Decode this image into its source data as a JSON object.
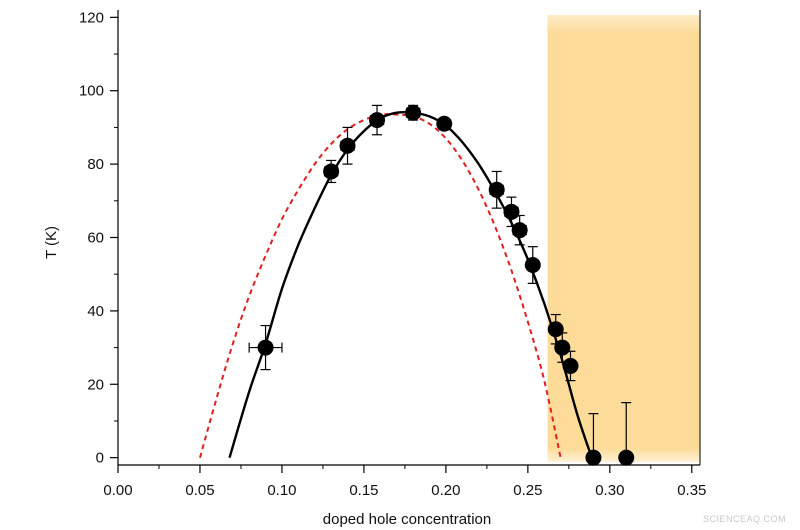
{
  "chart_data": {
    "type": "scatter",
    "title": "",
    "xlabel": "doped hole concentration",
    "ylabel": "T (K)",
    "xlim": [
      0.0,
      0.355
    ],
    "ylim": [
      -2,
      122
    ],
    "x_ticks": [
      "0.00",
      "0.05",
      "0.10",
      "0.15",
      "0.20",
      "0.25",
      "0.30",
      "0.35"
    ],
    "x_tick_values": [
      0.0,
      0.05,
      0.1,
      0.15,
      0.2,
      0.25,
      0.3,
      0.35
    ],
    "y_ticks": [
      "0",
      "20",
      "40",
      "60",
      "80",
      "100",
      "120"
    ],
    "y_tick_values": [
      0,
      20,
      40,
      60,
      80,
      100,
      120
    ],
    "grid": false,
    "shaded_region": {
      "x": [
        0.262,
        0.355
      ],
      "color": "#fddc9a"
    },
    "points": [
      {
        "x": 0.09,
        "y": 30,
        "xerr": 0.01,
        "yerr": 6
      },
      {
        "x": 0.13,
        "y": 78,
        "xerr": 0.004,
        "yerr": 3
      },
      {
        "x": 0.14,
        "y": 85,
        "xerr": 0.004,
        "yerr": 5
      },
      {
        "x": 0.158,
        "y": 92,
        "xerr": 0.004,
        "yerr": 4
      },
      {
        "x": 0.18,
        "y": 94,
        "xerr": 0.004,
        "yerr": 2
      },
      {
        "x": 0.199,
        "y": 91,
        "xerr": 0.0,
        "yerr": 0
      },
      {
        "x": 0.231,
        "y": 73,
        "xerr": 0.004,
        "yerr": 5
      },
      {
        "x": 0.24,
        "y": 67,
        "xerr": 0.004,
        "yerr": 4
      },
      {
        "x": 0.245,
        "y": 62,
        "xerr": 0.004,
        "yerr": 4
      },
      {
        "x": 0.253,
        "y": 52.5,
        "xerr": 0.003,
        "yerr": 5
      },
      {
        "x": 0.267,
        "y": 35,
        "xerr": 0.003,
        "yerr": 4
      },
      {
        "x": 0.271,
        "y": 30,
        "xerr": 0.003,
        "yerr": 4
      },
      {
        "x": 0.276,
        "y": 25,
        "xerr": 0.003,
        "yerr": 4
      },
      {
        "x": 0.29,
        "y": 0,
        "xerr": 0.003,
        "yerr_up": 12,
        "yerr_down": 0
      },
      {
        "x": 0.31,
        "y": 0,
        "xerr": 0.0,
        "yerr_up": 15,
        "yerr_down": 0
      }
    ],
    "fit_curve": {
      "style": "solid",
      "color": "#000000",
      "x": [
        0.068,
        0.08,
        0.09,
        0.1,
        0.11,
        0.12,
        0.13,
        0.14,
        0.15,
        0.16,
        0.17,
        0.18,
        0.19,
        0.2,
        0.21,
        0.22,
        0.23,
        0.24,
        0.25,
        0.26,
        0.27,
        0.28,
        0.289
      ],
      "y": [
        0,
        18,
        31,
        46,
        58,
        68,
        77,
        84,
        89,
        92.5,
        94,
        94,
        93,
        90.5,
        86,
        80,
        72.5,
        64,
        54,
        42,
        28,
        12,
        0
      ]
    },
    "reference_curve": {
      "style": "dashed",
      "color": "#e02020",
      "x": [
        0.05,
        0.06,
        0.07,
        0.08,
        0.09,
        0.1,
        0.11,
        0.12,
        0.13,
        0.14,
        0.15,
        0.16,
        0.17,
        0.18,
        0.19,
        0.2,
        0.21,
        0.22,
        0.23,
        0.24,
        0.25,
        0.26,
        0.27
      ],
      "y": [
        0,
        16,
        31,
        44,
        55,
        65,
        73,
        80,
        85.5,
        89.5,
        92,
        93.5,
        93.5,
        93,
        91,
        87,
        81,
        73,
        63,
        51,
        37,
        21,
        0
      ]
    }
  },
  "watermark": "SCIENCEAQ.COM"
}
